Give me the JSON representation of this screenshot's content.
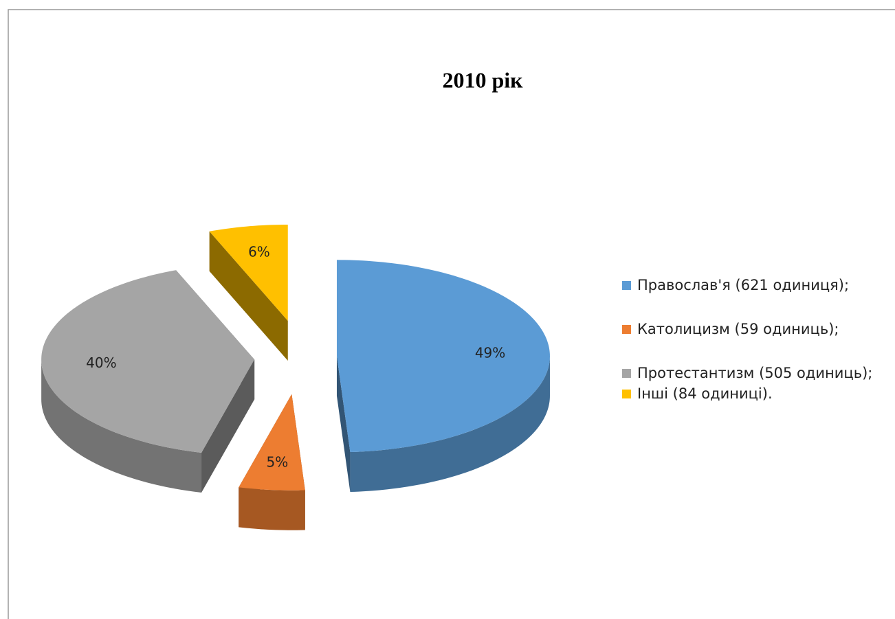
{
  "chart_data": {
    "type": "pie",
    "title": "2010 рік",
    "categories": [
      "Православ'я (621 одиниця);",
      "Католицизм (59 одиниць);",
      "Протестантизм (505 одиниць);",
      "Інші (84 одиниці)."
    ],
    "values": [
      49,
      5,
      40,
      6
    ],
    "value_labels": [
      "49%",
      "5%",
      "40%",
      "6%"
    ],
    "colors": [
      "#5b9bd5",
      "#ed7d31",
      "#a5a5a5",
      "#ffc000"
    ],
    "legend": "right"
  }
}
